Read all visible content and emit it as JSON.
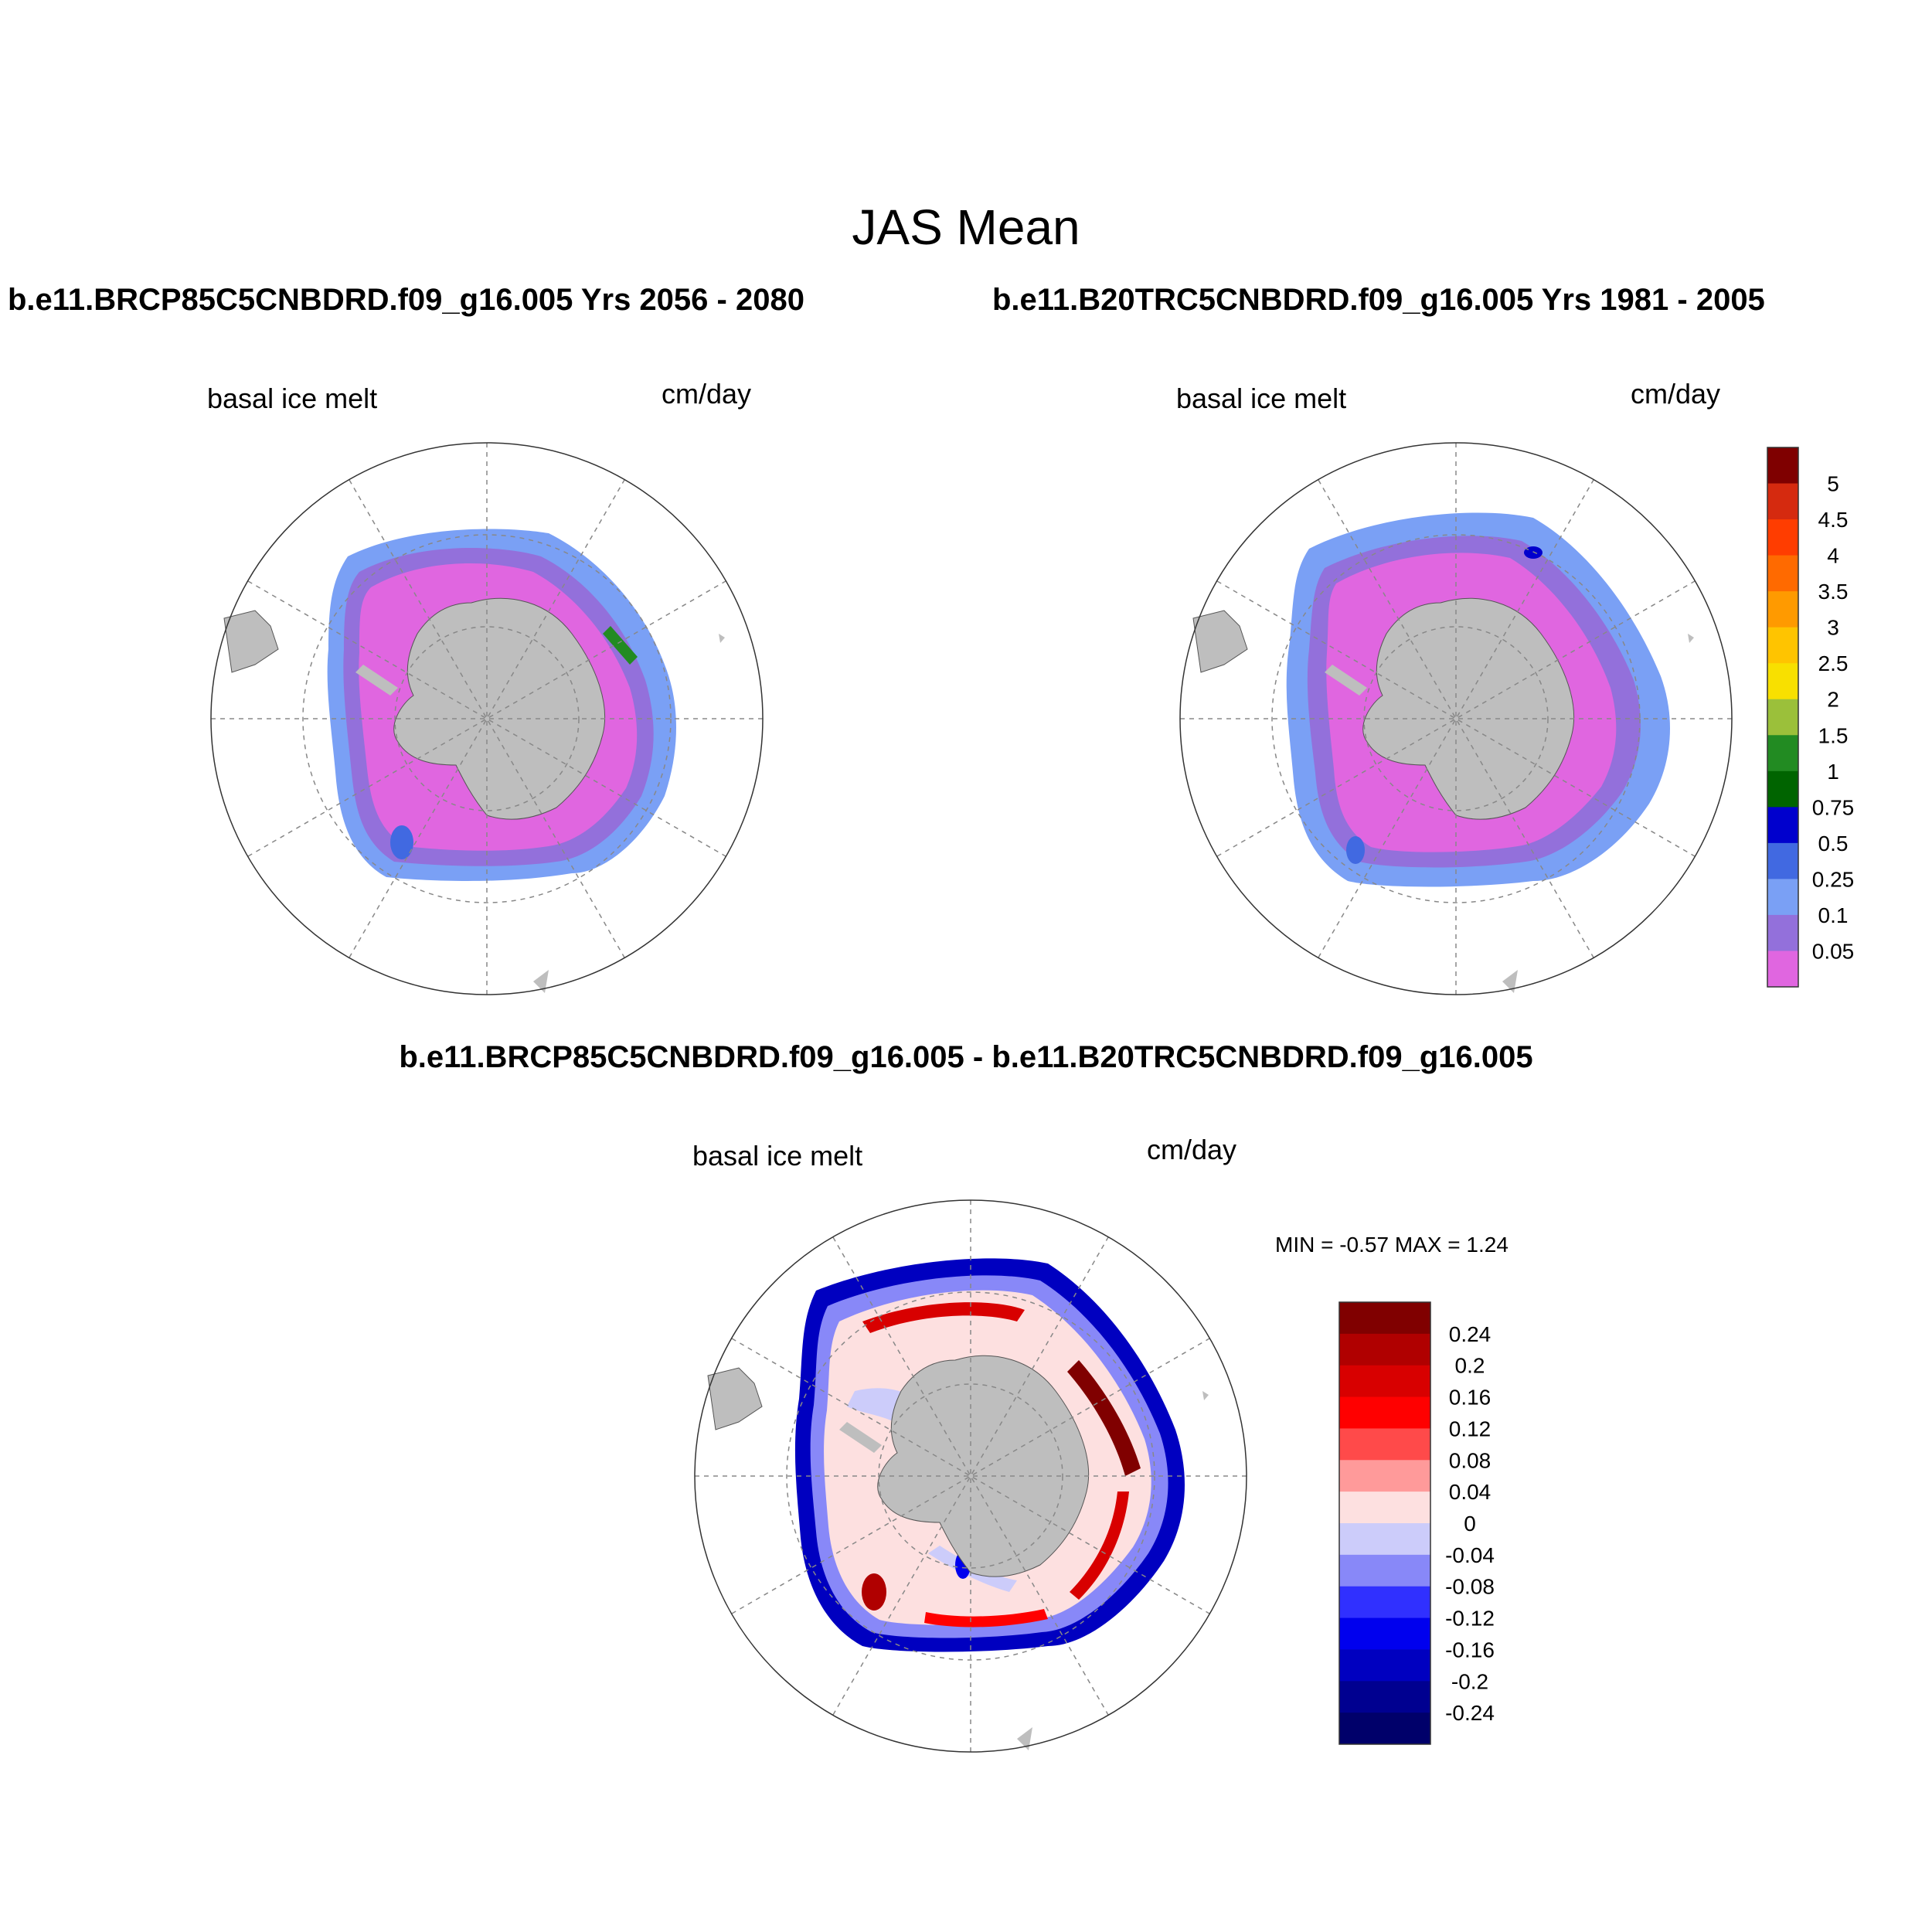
{
  "title": "JAS Mean",
  "panels": [
    {
      "id": "rcp85",
      "header": "b.e11.BRCP85C5CNBDRD.f09_g16.005  Yrs 2056 - 2080",
      "field_label": "basal ice melt",
      "units": "cm/day"
    },
    {
      "id": "b20tr",
      "header": "b.e11.B20TRC5CNBDRD.f09_g16.005  Yrs 1981 - 2005",
      "field_label": "basal ice melt",
      "units": "cm/day"
    }
  ],
  "difference": {
    "header": "b.e11.BRCP85C5CNBDRD.f09_g16.005 - b.e11.B20TRC5CNBDRD.f09_g16.005",
    "field_label": "basal ice melt",
    "units": "cm/day",
    "min_label": "MIN =  -0.57 MAX =   1.24",
    "min": -0.57,
    "max": 1.24
  },
  "colorbar_mean": {
    "labels": [
      "5",
      "4.5",
      "4",
      "3.5",
      "3",
      "2.5",
      "2",
      "1.5",
      "1",
      "0.75",
      "0.5",
      "0.25",
      "0.1",
      "0.05"
    ],
    "colors_top_to_bottom": [
      "#7f0000",
      "#d52a0f",
      "#ff3d00",
      "#ff6a00",
      "#ff9a00",
      "#ffc400",
      "#f8e000",
      "#9bc03a",
      "#228b22",
      "#006400",
      "#0000cd",
      "#4169e1",
      "#7aa0f5",
      "#9370db",
      "#e066e0"
    ]
  },
  "colorbar_diff": {
    "labels": [
      "0.24",
      "0.2",
      "0.16",
      "0.12",
      "0.08",
      "0.04",
      "0",
      "-0.04",
      "-0.08",
      "-0.12",
      "-0.16",
      "-0.2",
      "-0.24"
    ],
    "colors_top_to_bottom": [
      "#800000",
      "#b00000",
      "#d80000",
      "#ff0000",
      "#ff4a4a",
      "#ff9a9a",
      "#fde0e0",
      "#ccccfa",
      "#8888f8",
      "#3030ff",
      "#0000ee",
      "#0000c0",
      "#000090",
      "#00006a"
    ]
  },
  "colors": {
    "land": "#bebebe",
    "grid": "#888888"
  }
}
